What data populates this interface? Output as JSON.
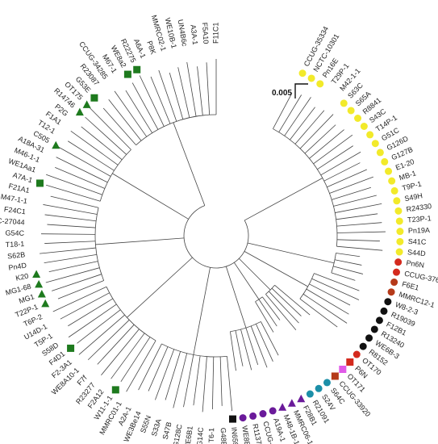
{
  "scale_bar": {
    "label": "0.005"
  },
  "marker_colors": {
    "yellow": "#f2ea2a",
    "red": "#d42a1e",
    "brown": "#b53a1a",
    "black": "#111111",
    "pink": "#e05ae8",
    "teal": "#1c8fa8",
    "purple": "#6a1a9a",
    "green": "#1e7a1e"
  },
  "leaves": [
    {
      "label": "CCUG-35334",
      "marker": "circle",
      "color": "yellow"
    },
    {
      "label": "NCTC-10301",
      "marker": "circle",
      "color": "yellow"
    },
    {
      "label": "Pn16E",
      "marker": "circle",
      "color": "yellow"
    },
    {
      "label": "T29P-1",
      "marker": "none",
      "color": ""
    },
    {
      "label": "M42-1-1",
      "marker": "none",
      "color": ""
    },
    {
      "label": "S63C",
      "marker": "circle",
      "color": "yellow"
    },
    {
      "label": "S65A",
      "marker": "circle",
      "color": "yellow"
    },
    {
      "label": "R8841",
      "marker": "circle",
      "color": "yellow"
    },
    {
      "label": "S43C",
      "marker": "circle",
      "color": "yellow"
    },
    {
      "label": "T14P-1",
      "marker": "circle",
      "color": "yellow"
    },
    {
      "label": "G51C",
      "marker": "circle",
      "color": "yellow"
    },
    {
      "label": "G126D",
      "marker": "circle",
      "color": "yellow"
    },
    {
      "label": "G127B",
      "marker": "circle",
      "color": "yellow"
    },
    {
      "label": "E1-20",
      "marker": "circle",
      "color": "yellow"
    },
    {
      "label": "MB-1",
      "marker": "circle",
      "color": "yellow"
    },
    {
      "label": "T9P-1",
      "marker": "circle",
      "color": "yellow"
    },
    {
      "label": "S49H",
      "marker": "circle",
      "color": "yellow"
    },
    {
      "label": "R24330",
      "marker": "circle",
      "color": "yellow"
    },
    {
      "label": "T23P-1",
      "marker": "circle",
      "color": "yellow"
    },
    {
      "label": "Pn19A",
      "marker": "circle",
      "color": "yellow"
    },
    {
      "label": "S41C",
      "marker": "circle",
      "color": "yellow"
    },
    {
      "label": "S44D",
      "marker": "circle",
      "color": "yellow"
    },
    {
      "label": "Pn6N",
      "marker": "circle",
      "color": "red"
    },
    {
      "label": "CCUG-37699",
      "marker": "circle",
      "color": "red"
    },
    {
      "label": "F6E1",
      "marker": "circle",
      "color": "brown"
    },
    {
      "label": "MMRC12-1",
      "marker": "circle",
      "color": "brown"
    },
    {
      "label": "W8-2-3",
      "marker": "circle",
      "color": "black"
    },
    {
      "label": "R19039",
      "marker": "circle",
      "color": "black"
    },
    {
      "label": "F12B1",
      "marker": "circle",
      "color": "black"
    },
    {
      "label": "R13240",
      "marker": "circle",
      "color": "black"
    },
    {
      "label": "WE6B-3",
      "marker": "circle",
      "color": "black"
    },
    {
      "label": "R8152",
      "marker": "circle",
      "color": "black"
    },
    {
      "label": "OT170",
      "marker": "circle",
      "color": "red"
    },
    {
      "label": "P6N",
      "marker": "square",
      "color": "red"
    },
    {
      "label": "OT171",
      "marker": "square",
      "color": "pink"
    },
    {
      "label": "CCUG-33920",
      "marker": "square",
      "color": "brown"
    },
    {
      "label": "S64C",
      "marker": "circle",
      "color": "teal"
    },
    {
      "label": "S24V",
      "marker": "circle",
      "color": "teal"
    },
    {
      "label": "R21091",
      "marker": "circle",
      "color": "teal"
    },
    {
      "label": "F28B1",
      "marker": "triangle",
      "color": "purple"
    },
    {
      "label": "MMRC06-1",
      "marker": "triangle",
      "color": "purple"
    },
    {
      "label": "M48-1B-1",
      "marker": "triangle",
      "color": "purple"
    },
    {
      "label": "A19A-1",
      "marker": "circle",
      "color": "purple"
    },
    {
      "label": "CCUG-34286",
      "marker": "circle",
      "color": "purple"
    },
    {
      "label": "R11372",
      "marker": "circle",
      "color": "purple"
    },
    {
      "label": "WE8B-23",
      "marker": "circle",
      "color": "purple"
    },
    {
      "label": "IN6590",
      "marker": "square",
      "color": "black"
    },
    {
      "label": "G48B",
      "marker": "none",
      "color": ""
    },
    {
      "label": "T6-1",
      "marker": "none",
      "color": ""
    },
    {
      "label": "G14C",
      "marker": "none",
      "color": ""
    },
    {
      "label": "WE6B1",
      "marker": "none",
      "color": ""
    },
    {
      "label": "G128C",
      "marker": "none",
      "color": ""
    },
    {
      "label": "S47B",
      "marker": "none",
      "color": ""
    },
    {
      "label": "S33A",
      "marker": "none",
      "color": ""
    },
    {
      "label": "S55N",
      "marker": "none",
      "color": ""
    },
    {
      "label": "WE3Be14",
      "marker": "none",
      "color": ""
    },
    {
      "label": "A2A-1",
      "marker": "none",
      "color": ""
    },
    {
      "label": "MMRC01-1",
      "marker": "none",
      "color": ""
    },
    {
      "label": "W11-1-1",
      "marker": "square",
      "color": "green"
    },
    {
      "label": "F2A12",
      "marker": "none",
      "color": ""
    },
    {
      "label": "R23277",
      "marker": "none",
      "color": ""
    },
    {
      "label": "F7f",
      "marker": "none",
      "color": ""
    },
    {
      "label": "WE8A10-1",
      "marker": "none",
      "color": ""
    },
    {
      "label": "F2-3A1",
      "marker": "none",
      "color": ""
    },
    {
      "label": "F4D1",
      "marker": "square",
      "color": "green"
    },
    {
      "label": "S58D",
      "marker": "none",
      "color": ""
    },
    {
      "label": "T5P-1",
      "marker": "none",
      "color": ""
    },
    {
      "label": "U14D-1",
      "marker": "none",
      "color": ""
    },
    {
      "label": "T6P-2",
      "marker": "none",
      "color": ""
    },
    {
      "label": "T22P-1",
      "marker": "triangle",
      "color": "green"
    },
    {
      "label": "MG1",
      "marker": "triangle",
      "color": "green"
    },
    {
      "label": "MG1-68",
      "marker": "triangle",
      "color": "green"
    },
    {
      "label": "K20",
      "marker": "triangle",
      "color": "green"
    },
    {
      "label": "Pn4D",
      "marker": "none",
      "color": ""
    },
    {
      "label": "S62B",
      "marker": "none",
      "color": ""
    },
    {
      "label": "T18-1",
      "marker": "none",
      "color": ""
    },
    {
      "label": "G54C",
      "marker": "none",
      "color": ""
    },
    {
      "label": "ATCC-27044",
      "marker": "none",
      "color": ""
    },
    {
      "label": "F24C1",
      "marker": "none",
      "color": ""
    },
    {
      "label": "M47-1-1",
      "marker": "none",
      "color": ""
    },
    {
      "label": "F21A1",
      "marker": "none",
      "color": ""
    },
    {
      "label": "A7A-1",
      "marker": "square",
      "color": "green"
    },
    {
      "label": "WE1Aa1",
      "marker": "none",
      "color": ""
    },
    {
      "label": "M46-1-1",
      "marker": "none",
      "color": ""
    },
    {
      "label": "A18A-31",
      "marker": "none",
      "color": ""
    },
    {
      "label": "C505",
      "marker": "triangle",
      "color": "green"
    },
    {
      "label": "T12-1",
      "marker": "none",
      "color": ""
    },
    {
      "label": "F1A1",
      "marker": "none",
      "color": ""
    },
    {
      "label": "P2G",
      "marker": "none",
      "color": ""
    },
    {
      "label": "R14746",
      "marker": "triangle",
      "color": "green"
    },
    {
      "label": "OT175",
      "marker": "triangle",
      "color": "green"
    },
    {
      "label": "G53E",
      "marker": "square",
      "color": "green"
    },
    {
      "label": "R23087",
      "marker": "none",
      "color": ""
    },
    {
      "label": "CCUG-34285",
      "marker": "none",
      "color": ""
    },
    {
      "label": "M67-1",
      "marker": "none",
      "color": ""
    },
    {
      "label": "WE8a2",
      "marker": "square",
      "color": "green"
    },
    {
      "label": "R22275",
      "marker": "square",
      "color": "green"
    },
    {
      "label": "A6A-1",
      "marker": "none",
      "color": ""
    },
    {
      "label": "P8K",
      "marker": "none",
      "color": ""
    },
    {
      "label": "MMRC02-1",
      "marker": "none",
      "color": ""
    },
    {
      "label": "WE10B-1",
      "marker": "none",
      "color": ""
    },
    {
      "label": "UN4B6c",
      "marker": "none",
      "color": ""
    },
    {
      "label": "A3A-1",
      "marker": "none",
      "color": ""
    },
    {
      "label": "F5A10",
      "marker": "none",
      "color": ""
    },
    {
      "label": "F11C1",
      "marker": "none",
      "color": ""
    }
  ]
}
